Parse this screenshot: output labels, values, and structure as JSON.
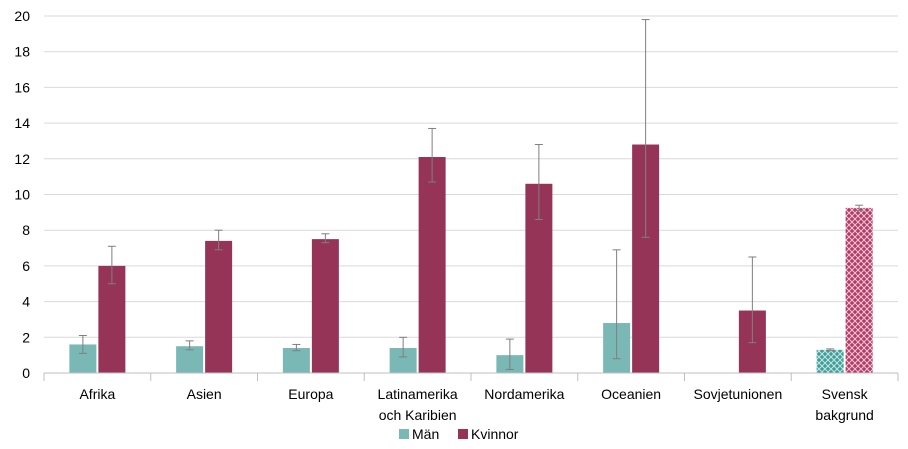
{
  "chart_data": {
    "type": "bar",
    "categories": [
      [
        "Afrika"
      ],
      [
        "Asien"
      ],
      [
        "Europa"
      ],
      [
        "Latinamerika",
        "och Karibien"
      ],
      [
        "Nordamerika"
      ],
      [
        "Oceanien"
      ],
      [
        "Sovjetunionen"
      ],
      [
        "Svensk",
        "bakgrund"
      ]
    ],
    "ylim": [
      0,
      20
    ],
    "yticks": [
      "0",
      "2",
      "4",
      "6",
      "8",
      "10",
      "12",
      "14",
      "16",
      "18",
      "20"
    ],
    "grid": true,
    "legend_position": "bottom",
    "series": [
      {
        "name": "Män",
        "color": "#7ab8b6",
        "values": [
          1.6,
          1.5,
          1.4,
          1.4,
          1.0,
          2.8,
          null,
          1.3
        ],
        "error_low": [
          1.1,
          1.3,
          1.25,
          0.9,
          0.2,
          0.8,
          null,
          1.25
        ],
        "error_high": [
          2.1,
          1.8,
          1.6,
          2.0,
          1.9,
          6.9,
          null,
          1.35
        ]
      },
      {
        "name": "Kvinnor",
        "color": "#963458",
        "values": [
          6.0,
          7.4,
          7.5,
          12.1,
          10.6,
          12.8,
          3.5,
          9.25
        ],
        "error_low": [
          5.0,
          6.9,
          7.3,
          10.7,
          8.6,
          7.6,
          1.7,
          9.1
        ],
        "error_high": [
          7.1,
          8.0,
          7.8,
          13.7,
          12.8,
          19.8,
          6.5,
          9.4
        ]
      }
    ],
    "hatched_category_index": 7
  }
}
